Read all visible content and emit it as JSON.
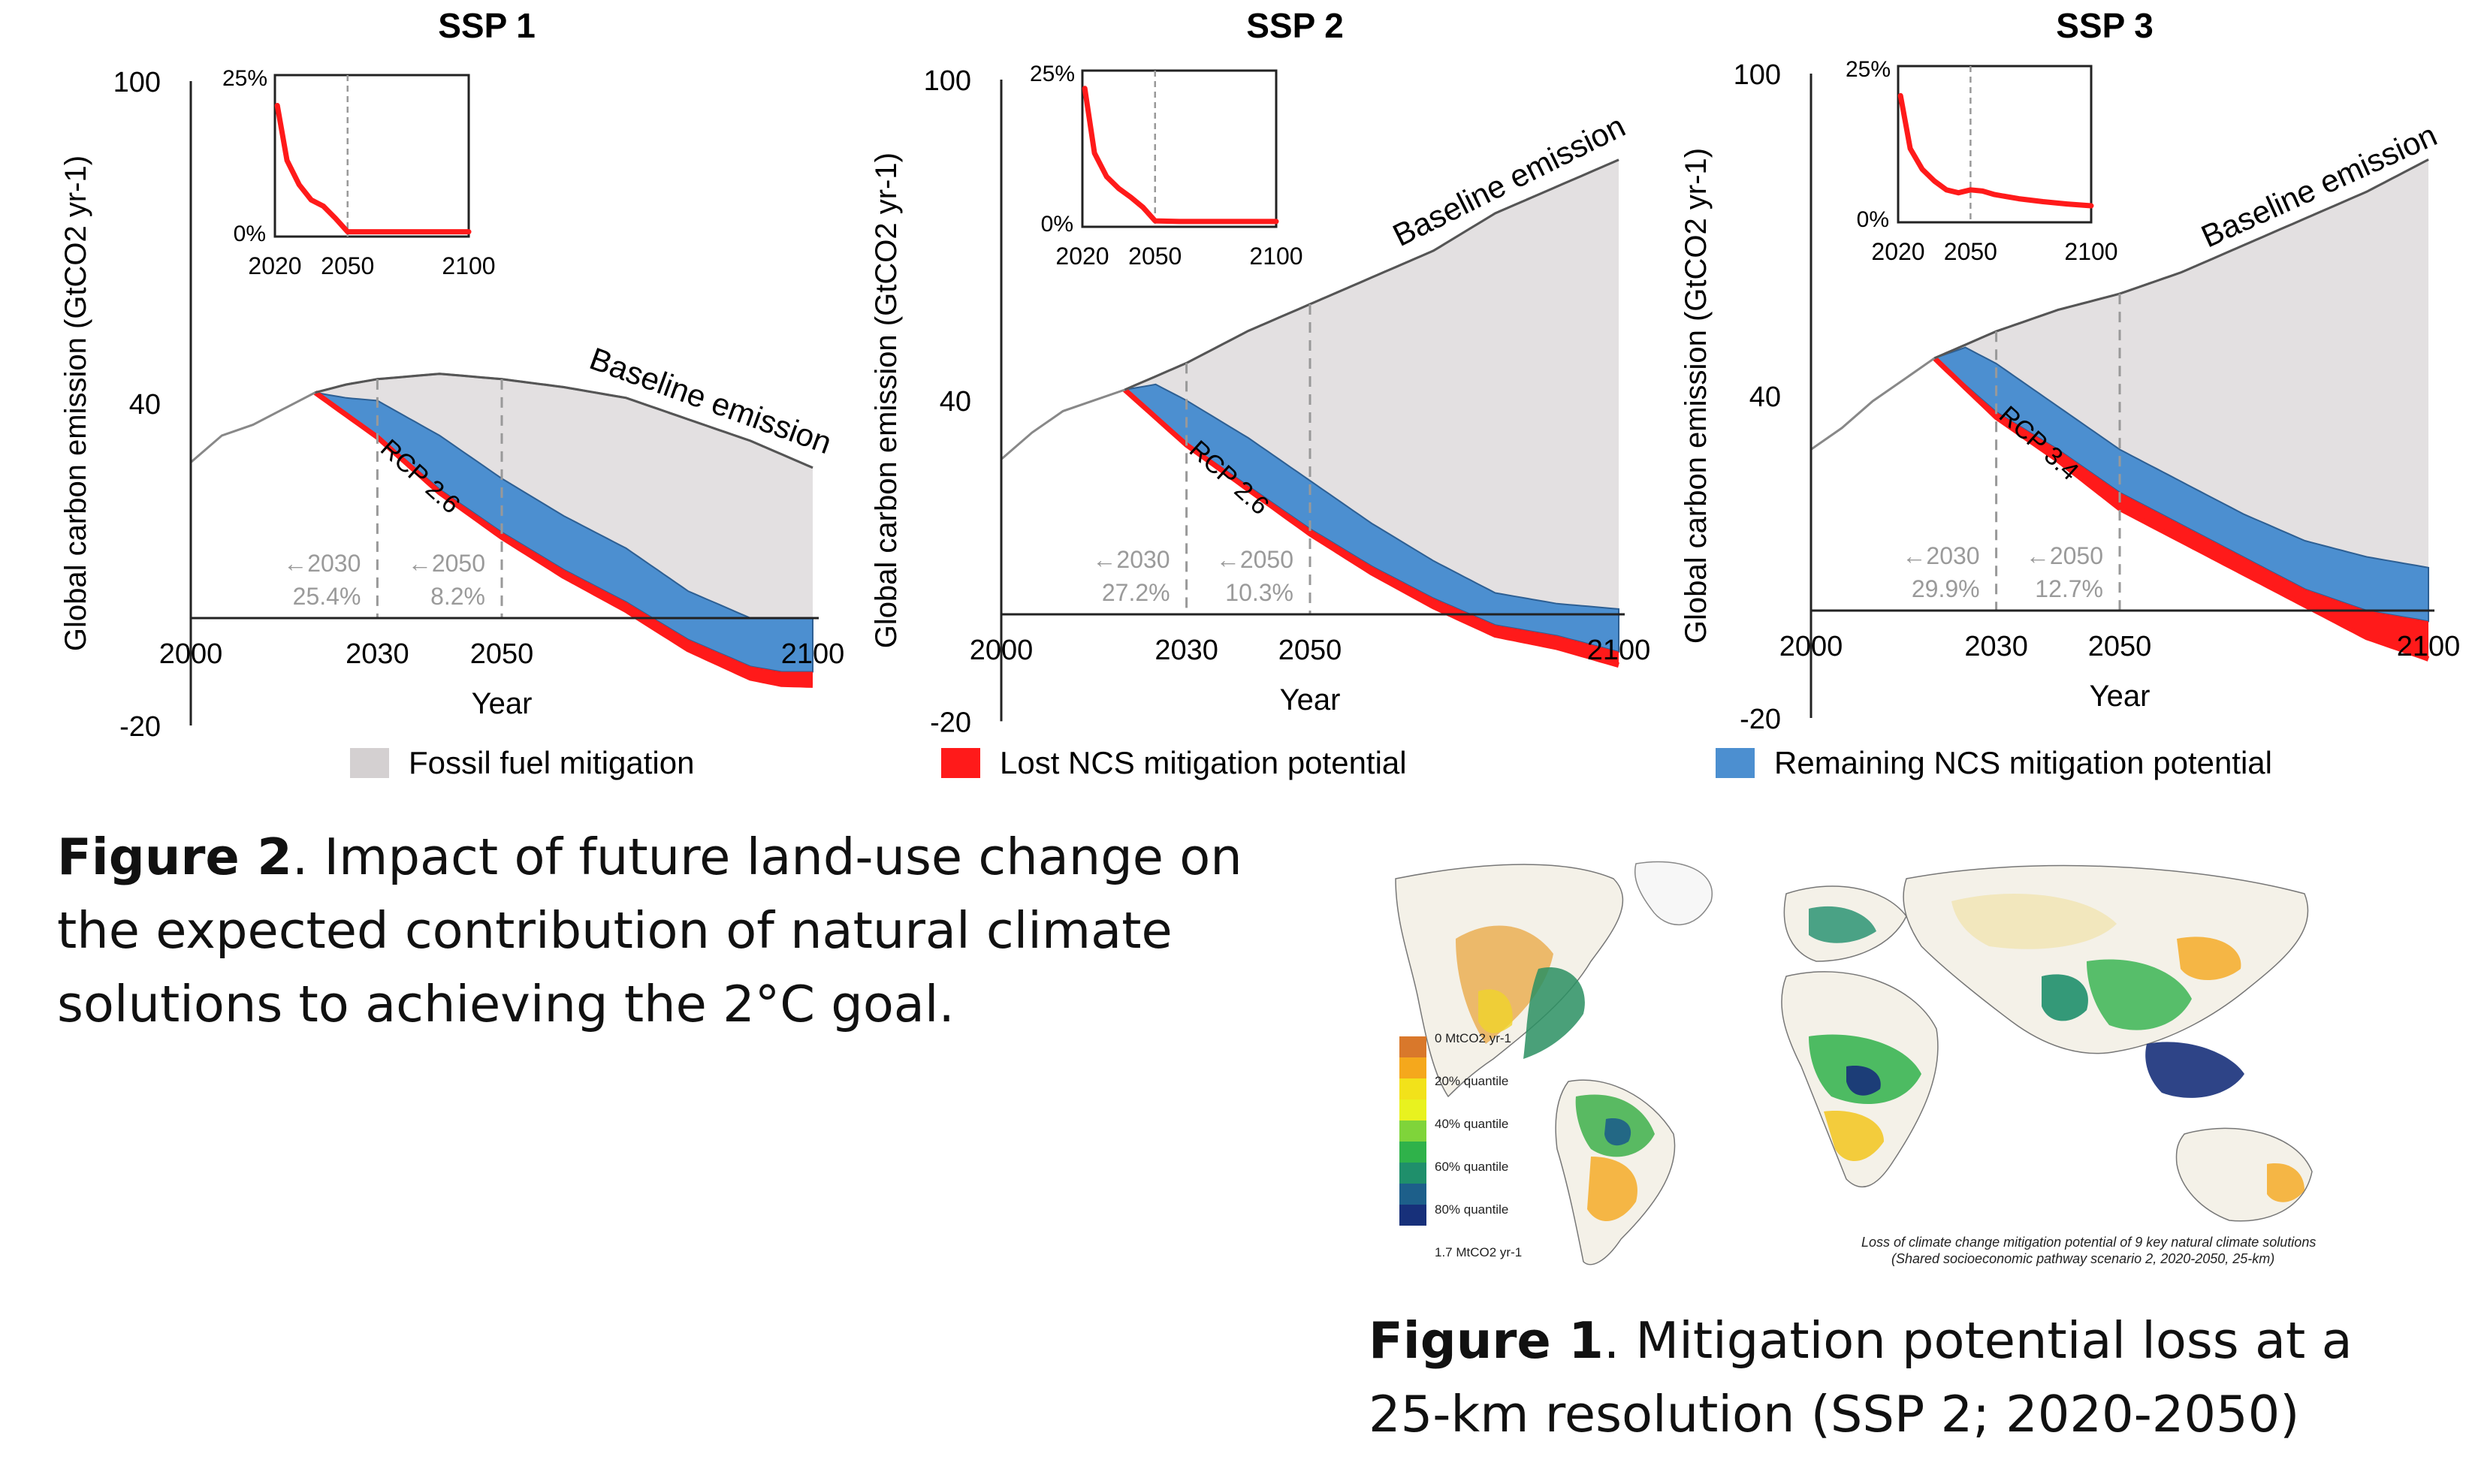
{
  "panels": [
    {
      "title": "SSP 1",
      "ylabel": "Global carbon emission (GtCO2 yr-1)",
      "xlabel": "Year",
      "yticks": [
        "100",
        "40",
        "-20"
      ],
      "xticks": [
        "2000",
        "2030",
        "2050",
        "2100"
      ],
      "baseline_label": "Baseline emission",
      "rcp_label": "RCP 2.6",
      "ann_2030": [
        "←2030",
        "25.4%"
      ],
      "ann_2050": [
        "←2050",
        "8.2%"
      ],
      "inset": {
        "ytop": "25%",
        "ybottom": "0%",
        "xticks": [
          "2020",
          "2050",
          "2100"
        ]
      }
    },
    {
      "title": "SSP 2",
      "ylabel": "Global carbon emission (GtCO2 yr-1)",
      "xlabel": "Year",
      "yticks": [
        "100",
        "40",
        "-20"
      ],
      "xticks": [
        "2000",
        "2030",
        "2050",
        "2100"
      ],
      "baseline_label": "Baseline emission",
      "rcp_label": "RCP 2.6",
      "ann_2030": [
        "←2030",
        "27.2%"
      ],
      "ann_2050": [
        "←2050",
        "10.3%"
      ],
      "inset": {
        "ytop": "25%",
        "ybottom": "0%",
        "xticks": [
          "2020",
          "2050",
          "2100"
        ]
      }
    },
    {
      "title": "SSP 3",
      "ylabel": "Global carbon emission (GtCO2 yr-1)",
      "xlabel": "Year",
      "yticks": [
        "100",
        "40",
        "-20"
      ],
      "xticks": [
        "2000",
        "2030",
        "2050",
        "2100"
      ],
      "baseline_label": "Baseline emission",
      "rcp_label": "RCP 3.4",
      "ann_2030": [
        "←2030",
        "29.9%"
      ],
      "ann_2050": [
        "←2050",
        "12.7%"
      ],
      "inset": {
        "ytop": "25%",
        "ybottom": "0%",
        "xticks": [
          "2020",
          "2050",
          "2100"
        ]
      }
    }
  ],
  "legend": [
    {
      "label": "Fossil fuel mitigation",
      "color": "#d4d0d1"
    },
    {
      "label": "Lost NCS mitigation potential",
      "color": "#ff1a1a"
    },
    {
      "label": "Remaining NCS mitigation potential",
      "color": "#4c8fd0"
    }
  ],
  "figure2_caption": {
    "bold": "Figure 2",
    "text": ". Impact of future land-use change on the expected contribution of natural climate solutions to achieving the 2°C goal."
  },
  "figure1_caption": {
    "bold": "Figure 1",
    "text": ". Mitigation potential loss at a 25-km resolution (SSP 2; 2020-2050)"
  },
  "map": {
    "legend_labels": [
      "0 MtCO2 yr-1",
      "20% quantile",
      "40% quantile",
      "60% quantile",
      "80% quantile",
      "1.7 MtCO2 yr-1"
    ],
    "legend_colors": [
      "#d9782b",
      "#f5a81c",
      "#f2e21a",
      "#e8f21f",
      "#7fd43a",
      "#2fb24a",
      "#1f8f6b",
      "#1d5f8a",
      "#17307a"
    ],
    "title_line1": "Loss of climate change mitigation potential of 9 key natural climate solutions",
    "title_line2": "(Shared socioeconomic pathway scenario 2, 2020-2050, 25-km)"
  },
  "chart_data": [
    {
      "type": "area",
      "title": "SSP 1",
      "xlabel": "Year",
      "ylabel": "Global carbon emission (GtCO2 yr-1)",
      "xlim": [
        2000,
        2100
      ],
      "ylim": [
        -20,
        100
      ],
      "series": [
        {
          "name": "Baseline emission",
          "x": [
            2000,
            2005,
            2010,
            2015,
            2020,
            2025,
            2030,
            2040,
            2050,
            2060,
            2070,
            2080,
            2090,
            2100
          ],
          "values": [
            29,
            34,
            36,
            39,
            42,
            43.5,
            44.5,
            45.5,
            44.5,
            43,
            41,
            37,
            33,
            28
          ]
        },
        {
          "name": "Remaining NCS mitigation potential upper bound",
          "x": [
            2020,
            2025,
            2030,
            2040,
            2050,
            2060,
            2070,
            2080,
            2090,
            2100
          ],
          "values": [
            42,
            41,
            40.5,
            34,
            26,
            19,
            13,
            5,
            0,
            0
          ]
        },
        {
          "name": "RCP 2.6",
          "x": [
            2020,
            2025,
            2030,
            2040,
            2050,
            2060,
            2070,
            2080,
            2090,
            2095,
            2100
          ],
          "values": [
            42,
            38,
            34,
            24,
            16,
            9,
            3,
            -4,
            -9,
            -10,
            -10
          ]
        }
      ]
    },
    {
      "type": "area",
      "title": "SSP 2",
      "xlabel": "Year",
      "ylabel": "Global carbon emission (GtCO2 yr-1)",
      "xlim": [
        2000,
        2100
      ],
      "ylim": [
        -20,
        100
      ],
      "series": [
        {
          "name": "Baseline emission",
          "x": [
            2000,
            2005,
            2010,
            2015,
            2020,
            2030,
            2040,
            2050,
            2060,
            2070,
            2080,
            2090,
            2100
          ],
          "values": [
            29,
            34,
            38,
            40,
            42,
            47,
            53,
            58,
            63,
            68,
            75,
            80,
            85
          ]
        },
        {
          "name": "Remaining NCS mitigation potential upper bound",
          "x": [
            2020,
            2025,
            2030,
            2040,
            2050,
            2060,
            2070,
            2080,
            2090,
            2100
          ],
          "values": [
            42,
            43,
            40,
            33,
            25,
            17,
            10,
            4,
            2,
            1
          ]
        },
        {
          "name": "RCP 2.6",
          "x": [
            2020,
            2025,
            2030,
            2040,
            2050,
            2060,
            2070,
            2080,
            2090,
            2100
          ],
          "values": [
            42,
            37,
            32,
            24,
            16,
            9,
            3,
            -2,
            -4,
            -7
          ]
        }
      ]
    },
    {
      "type": "area",
      "title": "SSP 3",
      "xlabel": "Year",
      "ylabel": "Global carbon emission (GtCO2 yr-1)",
      "xlim": [
        2000,
        2100
      ],
      "ylim": [
        -20,
        100
      ],
      "series": [
        {
          "name": "Baseline emission",
          "x": [
            2000,
            2005,
            2010,
            2015,
            2020,
            2030,
            2040,
            2050,
            2060,
            2070,
            2080,
            2090,
            2100
          ],
          "values": [
            30,
            34,
            39,
            43,
            47,
            52,
            56,
            59,
            63,
            68,
            73,
            78,
            84
          ]
        },
        {
          "name": "Remaining NCS mitigation potential upper bound",
          "x": [
            2020,
            2025,
            2030,
            2040,
            2050,
            2060,
            2070,
            2080,
            2090,
            2100
          ],
          "values": [
            47,
            49,
            46,
            38,
            30,
            24,
            18,
            13,
            10,
            8
          ]
        },
        {
          "name": "RCP 3.4",
          "x": [
            2020,
            2025,
            2030,
            2040,
            2050,
            2060,
            2070,
            2080,
            2090,
            2100
          ],
          "values": [
            47,
            42,
            37,
            30,
            22,
            16,
            10,
            4,
            0,
            -2
          ]
        }
      ],
      "lost_ncs_lower_bound": {
        "x": [
          2020,
          2030,
          2040,
          2050,
          2060,
          2070,
          2080,
          2090,
          2100
        ],
        "values": [
          47,
          36,
          28,
          19,
          13,
          7,
          1,
          -5,
          -9
        ]
      }
    }
  ],
  "inset_data": [
    {
      "x": [
        2021,
        2025,
        2030,
        2035,
        2040,
        2045,
        2050,
        2060,
        2070,
        2080,
        2090,
        2100
      ],
      "values": [
        21,
        12,
        8,
        5.5,
        4.5,
        2.5,
        0.3,
        0.3,
        0.3,
        0.3,
        0.3,
        0.3
      ],
      "xlim": [
        2020,
        2100
      ],
      "ylim": [
        0,
        25
      ]
    },
    {
      "x": [
        2021,
        2025,
        2030,
        2035,
        2040,
        2045,
        2050,
        2060,
        2070,
        2080,
        2090,
        2100
      ],
      "values": [
        23,
        12,
        8,
        6,
        4.5,
        2.8,
        0.5,
        0.4,
        0.4,
        0.4,
        0.4,
        0.4
      ],
      "xlim": [
        2020,
        2100
      ],
      "ylim": [
        0,
        25
      ]
    },
    {
      "x": [
        2021,
        2025,
        2030,
        2035,
        2040,
        2045,
        2050,
        2055,
        2060,
        2070,
        2080,
        2090,
        2100
      ],
      "values": [
        21,
        12,
        8.5,
        6.5,
        5,
        4.5,
        5,
        4.8,
        4.2,
        3.5,
        3,
        2.6,
        2.3
      ],
      "xlim": [
        2020,
        2100
      ],
      "ylim": [
        0,
        25
      ]
    }
  ]
}
